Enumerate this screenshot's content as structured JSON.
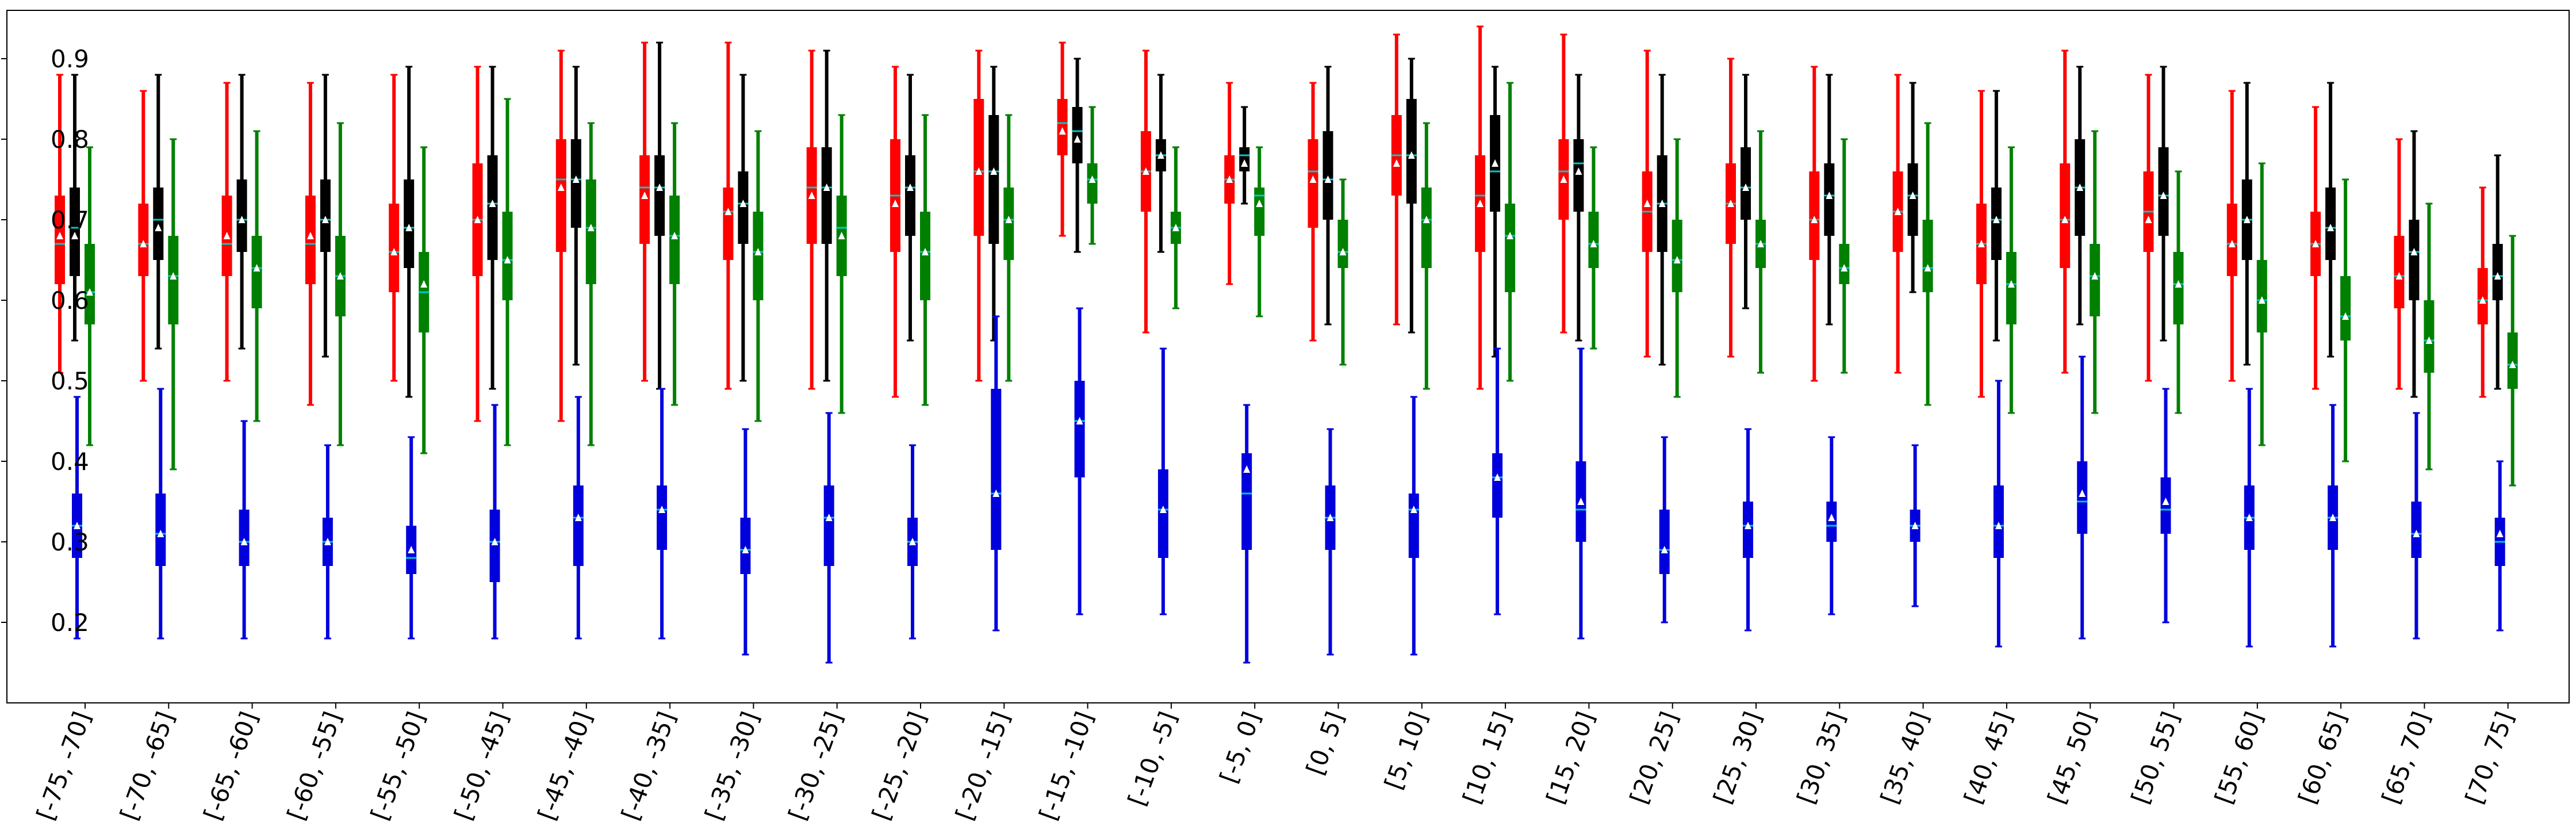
{
  "chart_data": {
    "type": "box",
    "title": "",
    "xlabel": "",
    "ylabel": "",
    "ylim": [
      0.1,
      0.96
    ],
    "yticks": [
      0.2,
      0.3,
      0.4,
      0.5,
      0.6,
      0.7,
      0.8,
      0.9
    ],
    "ytick_labels": [
      "0.2",
      "0.3",
      "0.4",
      "0.5",
      "0.6",
      "0.7",
      "0.8",
      "0.9"
    ],
    "grid": false,
    "legend": "none",
    "mean_marker_color": "#ffffff",
    "median_line_color": "#00c8c8",
    "categories": [
      "[-75, -70]",
      "[-70, -65]",
      "[-65, -60]",
      "[-60, -55]",
      "[-55, -50]",
      "[-50, -45]",
      "[-45, -40]",
      "[-40, -35]",
      "[-35, -30]",
      "[-30, -25]",
      "[-25, -20]",
      "[-20, -15]",
      "[-15, -10]",
      "[-10, -5]",
      "[-5, 0]",
      "[0, 5]",
      "[5, 10]",
      "[10, 15]",
      "[15, 20]",
      "[20, 25]",
      "[25, 30]",
      "[30, 35]",
      "[35, 40]",
      "[40, 45]",
      "[45, 50]",
      "[50, 55]",
      "[55, 60]",
      "[60, 65]",
      "[65, 70]",
      "[70, 75]"
    ],
    "series": [
      {
        "color": "#ff0000",
        "boxes": [
          [
            0.51,
            0.62,
            0.67,
            0.73,
            0.88
          ],
          [
            0.5,
            0.63,
            0.67,
            0.72,
            0.86
          ],
          [
            0.5,
            0.63,
            0.67,
            0.73,
            0.87
          ],
          [
            0.47,
            0.62,
            0.67,
            0.73,
            0.87
          ],
          [
            0.5,
            0.61,
            0.66,
            0.72,
            0.88
          ],
          [
            0.45,
            0.63,
            0.7,
            0.77,
            0.89
          ],
          [
            0.45,
            0.66,
            0.75,
            0.8,
            0.91
          ],
          [
            0.5,
            0.67,
            0.74,
            0.78,
            0.92
          ],
          [
            0.49,
            0.65,
            0.71,
            0.74,
            0.92
          ],
          [
            0.49,
            0.67,
            0.74,
            0.79,
            0.91
          ],
          [
            0.48,
            0.66,
            0.73,
            0.8,
            0.89
          ],
          [
            0.5,
            0.68,
            0.76,
            0.85,
            0.91
          ],
          [
            0.68,
            0.78,
            0.82,
            0.85,
            0.92
          ],
          [
            0.56,
            0.71,
            0.76,
            0.81,
            0.91
          ],
          [
            0.62,
            0.72,
            0.75,
            0.78,
            0.87
          ],
          [
            0.55,
            0.69,
            0.76,
            0.8,
            0.87
          ],
          [
            0.57,
            0.73,
            0.78,
            0.83,
            0.93
          ],
          [
            0.49,
            0.66,
            0.73,
            0.78,
            0.94
          ],
          [
            0.56,
            0.7,
            0.76,
            0.8,
            0.93
          ],
          [
            0.53,
            0.66,
            0.71,
            0.76,
            0.91
          ],
          [
            0.53,
            0.67,
            0.72,
            0.77,
            0.9
          ],
          [
            0.5,
            0.65,
            0.7,
            0.76,
            0.89
          ],
          [
            0.51,
            0.66,
            0.71,
            0.76,
            0.88
          ],
          [
            0.48,
            0.62,
            0.67,
            0.72,
            0.86
          ],
          [
            0.51,
            0.64,
            0.7,
            0.77,
            0.91
          ],
          [
            0.5,
            0.66,
            0.71,
            0.76,
            0.88
          ],
          [
            0.5,
            0.63,
            0.67,
            0.72,
            0.86
          ],
          [
            0.49,
            0.63,
            0.67,
            0.71,
            0.84
          ],
          [
            0.49,
            0.59,
            0.63,
            0.68,
            0.8
          ],
          [
            0.48,
            0.57,
            0.6,
            0.64,
            0.74
          ]
        ],
        "means": [
          0.68,
          0.67,
          0.68,
          0.68,
          0.66,
          0.7,
          0.74,
          0.73,
          0.71,
          0.73,
          0.72,
          0.76,
          0.81,
          0.76,
          0.75,
          0.75,
          0.77,
          0.72,
          0.75,
          0.72,
          0.72,
          0.7,
          0.71,
          0.67,
          0.7,
          0.7,
          0.67,
          0.67,
          0.63,
          0.6
        ]
      },
      {
        "color": "#000000",
        "boxes": [
          [
            0.55,
            0.63,
            0.69,
            0.74,
            0.88
          ],
          [
            0.54,
            0.65,
            0.7,
            0.74,
            0.88
          ],
          [
            0.54,
            0.66,
            0.7,
            0.75,
            0.88
          ],
          [
            0.53,
            0.66,
            0.7,
            0.75,
            0.88
          ],
          [
            0.48,
            0.64,
            0.69,
            0.75,
            0.89
          ],
          [
            0.49,
            0.65,
            0.72,
            0.78,
            0.89
          ],
          [
            0.52,
            0.69,
            0.75,
            0.8,
            0.89
          ],
          [
            0.49,
            0.68,
            0.74,
            0.78,
            0.92
          ],
          [
            0.5,
            0.67,
            0.72,
            0.76,
            0.88
          ],
          [
            0.5,
            0.67,
            0.74,
            0.79,
            0.91
          ],
          [
            0.55,
            0.68,
            0.74,
            0.78,
            0.88
          ],
          [
            0.55,
            0.67,
            0.76,
            0.83,
            0.89
          ],
          [
            0.66,
            0.77,
            0.81,
            0.84,
            0.9
          ],
          [
            0.66,
            0.76,
            0.78,
            0.8,
            0.88
          ],
          [
            0.72,
            0.76,
            0.78,
            0.79,
            0.84
          ],
          [
            0.57,
            0.7,
            0.75,
            0.81,
            0.89
          ],
          [
            0.56,
            0.72,
            0.78,
            0.85,
            0.9
          ],
          [
            0.53,
            0.71,
            0.76,
            0.83,
            0.89
          ],
          [
            0.55,
            0.71,
            0.77,
            0.8,
            0.88
          ],
          [
            0.52,
            0.66,
            0.72,
            0.78,
            0.88
          ],
          [
            0.59,
            0.7,
            0.74,
            0.79,
            0.88
          ],
          [
            0.57,
            0.68,
            0.73,
            0.77,
            0.88
          ],
          [
            0.61,
            0.68,
            0.73,
            0.77,
            0.87
          ],
          [
            0.55,
            0.65,
            0.7,
            0.74,
            0.86
          ],
          [
            0.57,
            0.68,
            0.74,
            0.8,
            0.89
          ],
          [
            0.55,
            0.68,
            0.73,
            0.79,
            0.89
          ],
          [
            0.52,
            0.65,
            0.7,
            0.75,
            0.87
          ],
          [
            0.53,
            0.65,
            0.69,
            0.74,
            0.87
          ],
          [
            0.48,
            0.6,
            0.66,
            0.7,
            0.81
          ],
          [
            0.49,
            0.6,
            0.63,
            0.67,
            0.78
          ]
        ],
        "means": [
          0.68,
          0.69,
          0.7,
          0.7,
          0.69,
          0.72,
          0.75,
          0.74,
          0.72,
          0.74,
          0.74,
          0.76,
          0.8,
          0.78,
          0.77,
          0.75,
          0.78,
          0.77,
          0.76,
          0.72,
          0.74,
          0.73,
          0.73,
          0.7,
          0.74,
          0.73,
          0.7,
          0.69,
          0.66,
          0.63
        ]
      },
      {
        "color": "#008000",
        "boxes": [
          [
            0.42,
            0.57,
            0.61,
            0.67,
            0.79
          ],
          [
            0.39,
            0.57,
            0.63,
            0.68,
            0.8
          ],
          [
            0.45,
            0.59,
            0.64,
            0.68,
            0.81
          ],
          [
            0.42,
            0.58,
            0.63,
            0.68,
            0.82
          ],
          [
            0.41,
            0.56,
            0.61,
            0.66,
            0.79
          ],
          [
            0.42,
            0.6,
            0.65,
            0.71,
            0.85
          ],
          [
            0.42,
            0.62,
            0.69,
            0.75,
            0.82
          ],
          [
            0.47,
            0.62,
            0.68,
            0.73,
            0.82
          ],
          [
            0.45,
            0.6,
            0.66,
            0.71,
            0.81
          ],
          [
            0.46,
            0.63,
            0.69,
            0.73,
            0.83
          ],
          [
            0.47,
            0.6,
            0.66,
            0.71,
            0.83
          ],
          [
            0.5,
            0.65,
            0.7,
            0.74,
            0.83
          ],
          [
            0.67,
            0.72,
            0.75,
            0.77,
            0.84
          ],
          [
            0.59,
            0.67,
            0.69,
            0.71,
            0.79
          ],
          [
            0.58,
            0.68,
            0.73,
            0.74,
            0.79
          ],
          [
            0.52,
            0.64,
            0.66,
            0.7,
            0.75
          ],
          [
            0.49,
            0.64,
            0.7,
            0.74,
            0.82
          ],
          [
            0.5,
            0.61,
            0.68,
            0.72,
            0.87
          ],
          [
            0.54,
            0.64,
            0.67,
            0.71,
            0.79
          ],
          [
            0.48,
            0.61,
            0.65,
            0.7,
            0.8
          ],
          [
            0.51,
            0.64,
            0.67,
            0.7,
            0.81
          ],
          [
            0.51,
            0.62,
            0.64,
            0.67,
            0.8
          ],
          [
            0.47,
            0.61,
            0.64,
            0.7,
            0.82
          ],
          [
            0.46,
            0.57,
            0.62,
            0.66,
            0.79
          ],
          [
            0.46,
            0.58,
            0.63,
            0.67,
            0.81
          ],
          [
            0.46,
            0.57,
            0.62,
            0.66,
            0.76
          ],
          [
            0.42,
            0.56,
            0.6,
            0.65,
            0.77
          ],
          [
            0.4,
            0.55,
            0.58,
            0.63,
            0.75
          ],
          [
            0.39,
            0.51,
            0.55,
            0.6,
            0.72
          ],
          [
            0.37,
            0.49,
            0.52,
            0.56,
            0.68
          ]
        ],
        "means": [
          0.61,
          0.63,
          0.64,
          0.63,
          0.62,
          0.65,
          0.69,
          0.68,
          0.66,
          0.68,
          0.66,
          0.7,
          0.75,
          0.69,
          0.72,
          0.66,
          0.7,
          0.68,
          0.67,
          0.65,
          0.67,
          0.64,
          0.64,
          0.62,
          0.63,
          0.62,
          0.6,
          0.58,
          0.55,
          0.52
        ]
      },
      {
        "color": "#0000dd",
        "boxes": [
          [
            0.18,
            0.28,
            0.32,
            0.36,
            0.48
          ],
          [
            0.18,
            0.27,
            0.31,
            0.36,
            0.49
          ],
          [
            0.18,
            0.27,
            0.3,
            0.34,
            0.45
          ],
          [
            0.18,
            0.27,
            0.3,
            0.33,
            0.42
          ],
          [
            0.18,
            0.26,
            0.28,
            0.32,
            0.43
          ],
          [
            0.18,
            0.25,
            0.3,
            0.34,
            0.47
          ],
          [
            0.18,
            0.27,
            0.33,
            0.37,
            0.48
          ],
          [
            0.18,
            0.29,
            0.34,
            0.37,
            0.49
          ],
          [
            0.16,
            0.26,
            0.29,
            0.33,
            0.44
          ],
          [
            0.15,
            0.27,
            0.33,
            0.37,
            0.46
          ],
          [
            0.18,
            0.27,
            0.3,
            0.33,
            0.42
          ],
          [
            0.19,
            0.29,
            0.36,
            0.49,
            0.58
          ],
          [
            0.21,
            0.38,
            0.45,
            0.5,
            0.59
          ],
          [
            0.21,
            0.28,
            0.34,
            0.39,
            0.54
          ],
          [
            0.15,
            0.29,
            0.36,
            0.41,
            0.47
          ],
          [
            0.16,
            0.29,
            0.33,
            0.37,
            0.44
          ],
          [
            0.16,
            0.28,
            0.34,
            0.36,
            0.48
          ],
          [
            0.21,
            0.33,
            0.38,
            0.41,
            0.54
          ],
          [
            0.18,
            0.3,
            0.34,
            0.4,
            0.54
          ],
          [
            0.2,
            0.26,
            0.29,
            0.34,
            0.43
          ],
          [
            0.19,
            0.28,
            0.32,
            0.35,
            0.44
          ],
          [
            0.21,
            0.3,
            0.32,
            0.35,
            0.43
          ],
          [
            0.22,
            0.3,
            0.32,
            0.34,
            0.42
          ],
          [
            0.17,
            0.28,
            0.32,
            0.37,
            0.5
          ],
          [
            0.18,
            0.31,
            0.35,
            0.4,
            0.53
          ],
          [
            0.2,
            0.31,
            0.34,
            0.38,
            0.49
          ],
          [
            0.17,
            0.29,
            0.33,
            0.37,
            0.49
          ],
          [
            0.17,
            0.29,
            0.33,
            0.37,
            0.47
          ],
          [
            0.18,
            0.28,
            0.31,
            0.35,
            0.46
          ],
          [
            0.19,
            0.27,
            0.3,
            0.33,
            0.4
          ]
        ],
        "means": [
          0.32,
          0.31,
          0.3,
          0.3,
          0.29,
          0.3,
          0.33,
          0.34,
          0.29,
          0.33,
          0.3,
          0.36,
          0.45,
          0.34,
          0.39,
          0.33,
          0.34,
          0.38,
          0.35,
          0.29,
          0.32,
          0.33,
          0.32,
          0.32,
          0.36,
          0.35,
          0.33,
          0.33,
          0.31,
          0.31
        ]
      }
    ]
  }
}
